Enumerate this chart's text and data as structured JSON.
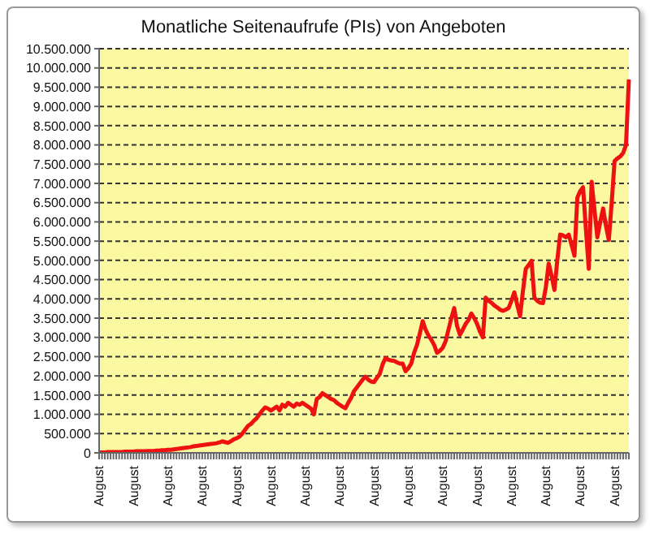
{
  "chart_data": {
    "type": "line",
    "title": "Monatliche Seitenaufrufe (PIs) von Angeboten",
    "categories": [
      "August",
      null,
      null,
      null,
      null,
      null,
      null,
      null,
      null,
      null,
      null,
      null,
      "August",
      null,
      null,
      null,
      null,
      null,
      null,
      null,
      null,
      null,
      null,
      null,
      "August",
      null,
      null,
      null,
      null,
      null,
      null,
      null,
      null,
      null,
      null,
      null,
      "August",
      null,
      null,
      null,
      null,
      null,
      null,
      null,
      null,
      null,
      null,
      null,
      "August",
      null,
      null,
      null,
      null,
      null,
      null,
      null,
      null,
      null,
      null,
      null,
      "August",
      null,
      null,
      null,
      null,
      null,
      null,
      null,
      null,
      null,
      null,
      null,
      "August",
      null,
      null,
      null,
      null,
      null,
      null,
      null,
      null,
      null,
      null,
      null,
      "August",
      null,
      null,
      null,
      null,
      null,
      null,
      null,
      null,
      null,
      null,
      null,
      "August",
      null,
      null,
      null,
      null,
      null,
      null,
      null,
      null,
      null,
      null,
      null,
      "August",
      null,
      null,
      null,
      null,
      null,
      null,
      null,
      null,
      null,
      null,
      null,
      "August",
      null,
      null,
      null,
      null,
      null,
      null,
      null,
      null,
      null,
      null,
      null,
      "August",
      null,
      null,
      null,
      null,
      null,
      null,
      null,
      null,
      null,
      null,
      null,
      "August",
      null,
      null,
      null,
      null,
      null,
      null,
      null,
      null,
      null,
      null,
      null,
      "August",
      null,
      null,
      null,
      null,
      null,
      null,
      null,
      null,
      null,
      null,
      null,
      "August",
      null,
      null,
      null,
      null,
      null,
      null,
      null,
      null,
      null,
      null,
      null,
      "August",
      null,
      null,
      null,
      null,
      null
    ],
    "series": [
      {
        "color": "#ee1111",
        "values": [
          10000,
          10000,
          10000,
          20000,
          20000,
          20000,
          20000,
          20000,
          20000,
          30000,
          30000,
          30000,
          30000,
          40000,
          40000,
          40000,
          40000,
          50000,
          50000,
          50000,
          60000,
          60000,
          70000,
          70000,
          80000,
          80000,
          90000,
          100000,
          110000,
          120000,
          130000,
          140000,
          150000,
          170000,
          180000,
          190000,
          200000,
          210000,
          220000,
          230000,
          240000,
          250000,
          270000,
          300000,
          280000,
          260000,
          300000,
          350000,
          380000,
          420000,
          500000,
          600000,
          700000,
          750000,
          830000,
          900000,
          1000000,
          1100000,
          1180000,
          1150000,
          1100000,
          1150000,
          1200000,
          1100000,
          1250000,
          1200000,
          1300000,
          1250000,
          1200000,
          1280000,
          1250000,
          1300000,
          1250000,
          1200000,
          1150000,
          1000000,
          1400000,
          1450000,
          1550000,
          1500000,
          1450000,
          1400000,
          1370000,
          1300000,
          1250000,
          1200000,
          1160000,
          1300000,
          1430000,
          1600000,
          1700000,
          1800000,
          1900000,
          1980000,
          1900000,
          1850000,
          1840000,
          1950000,
          2050000,
          2300000,
          2460000,
          2420000,
          2400000,
          2390000,
          2350000,
          2320000,
          2320000,
          2120000,
          2200000,
          2320000,
          2600000,
          2800000,
          3100000,
          3420000,
          3200000,
          3050000,
          2940000,
          2800000,
          2600000,
          2650000,
          2730000,
          2900000,
          3200000,
          3500000,
          3760000,
          3300000,
          3070000,
          3200000,
          3350000,
          3450000,
          3620000,
          3500000,
          3350000,
          3150000,
          3000000,
          4030000,
          3950000,
          3900000,
          3830000,
          3780000,
          3720000,
          3690000,
          3720000,
          3760000,
          3950000,
          4170000,
          3850000,
          3550000,
          4200000,
          4780000,
          4880000,
          4990000,
          4030000,
          3950000,
          3900000,
          3890000,
          4300000,
          4920000,
          4600000,
          4230000,
          5000000,
          5670000,
          5650000,
          5600000,
          5670000,
          5400000,
          5120000,
          6630000,
          6800000,
          6900000,
          5800000,
          4780000,
          7040000,
          6300000,
          5600000,
          6000000,
          6350000,
          5900000,
          5530000,
          6500000,
          7580000,
          7650000,
          7700000,
          7790000,
          8000000,
          9700000
        ]
      }
    ],
    "ylim": [
      0,
      10500000
    ],
    "yticks": [
      {
        "value": 0,
        "label": "0"
      },
      {
        "value": 500000,
        "label": "500.000"
      },
      {
        "value": 1000000,
        "label": "1.000.000"
      },
      {
        "value": 1500000,
        "label": "1.500.000"
      },
      {
        "value": 2000000,
        "label": "2.000.000"
      },
      {
        "value": 2500000,
        "label": "2.500.000"
      },
      {
        "value": 3000000,
        "label": "3.000.000"
      },
      {
        "value": 3500000,
        "label": "3.500.000"
      },
      {
        "value": 4000000,
        "label": "4.000.000"
      },
      {
        "value": 4500000,
        "label": "4.500.000"
      },
      {
        "value": 5000000,
        "label": "5.000.000"
      },
      {
        "value": 5500000,
        "label": "5.500.000"
      },
      {
        "value": 6000000,
        "label": "6.000.000"
      },
      {
        "value": 6500000,
        "label": "6.500.000"
      },
      {
        "value": 7000000,
        "label": "7.000.000"
      },
      {
        "value": 7500000,
        "label": "7.500.000"
      },
      {
        "value": 8000000,
        "label": "8.000.000"
      },
      {
        "value": 8500000,
        "label": "8.500.000"
      },
      {
        "value": 9000000,
        "label": "9.000.000"
      },
      {
        "value": 9500000,
        "label": "9.500.000"
      },
      {
        "value": 10000000,
        "label": "10.000.000"
      },
      {
        "value": 10500000,
        "label": "10.500.000"
      }
    ],
    "grid": "y",
    "marker": "none"
  }
}
